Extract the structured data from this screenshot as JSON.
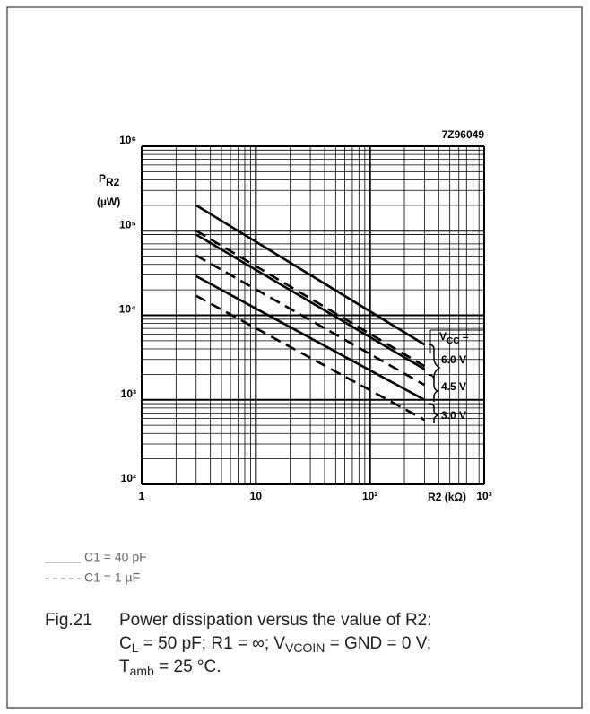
{
  "chart_data": {
    "type": "line",
    "title": "7Z96049",
    "ylabel": [
      "P",
      "R2",
      "(µW)"
    ],
    "xlabel": "R2 (kΩ)",
    "log_x": true,
    "log_y": true,
    "grid": true,
    "xlim": [
      1,
      1000
    ],
    "xticks": [
      1,
      10,
      {
        "value": 100,
        "label": "10²"
      },
      {
        "value": 1000,
        "label": "10³"
      }
    ],
    "ylim": [
      100,
      1000000
    ],
    "yticks": [
      {
        "value": 100,
        "label": "10²"
      },
      {
        "value": 1000,
        "label": "10³"
      },
      {
        "value": 10000,
        "label": "10⁴"
      },
      {
        "value": 100000,
        "label": "10⁵"
      },
      {
        "value": 1000000,
        "label": "10⁶"
      }
    ],
    "x": [
      3,
      300
    ],
    "series": [
      {
        "name": "C1 = 40 pF",
        "color": "#000000",
        "dash": false,
        "values": [
          200000,
          4500
        ]
      },
      {
        "name": "C1 = 1 µF",
        "color": "#000000",
        "dash": true,
        "values": [
          100000,
          2500
        ]
      },
      {
        "color": "#000000",
        "dash": false,
        "values": [
          90000,
          2300
        ]
      },
      {
        "color": "#000000",
        "dash": true,
        "values": [
          51000,
          1500
        ]
      },
      {
        "color": "#000000",
        "dash": false,
        "values": [
          29000,
          1000
        ]
      },
      {
        "color": "#000000",
        "dash": true,
        "values": [
          17000,
          580
        ]
      }
    ],
    "vcc_label": [
      "V",
      "CC",
      " ="
    ],
    "vcc_values": [
      "6.0 V",
      "4.5 V",
      "3.0 V"
    ],
    "caption": {
      "fig": "Fig.21",
      "lines": [
        [
          "Power dissipation versus the value of R2:"
        ],
        [
          "C",
          "L",
          " = 50 pF; R1 = ∞; V",
          "VCOIN",
          " = GND = 0 V;"
        ],
        [
          "T",
          "amb",
          " = 25 °C."
        ]
      ]
    }
  }
}
